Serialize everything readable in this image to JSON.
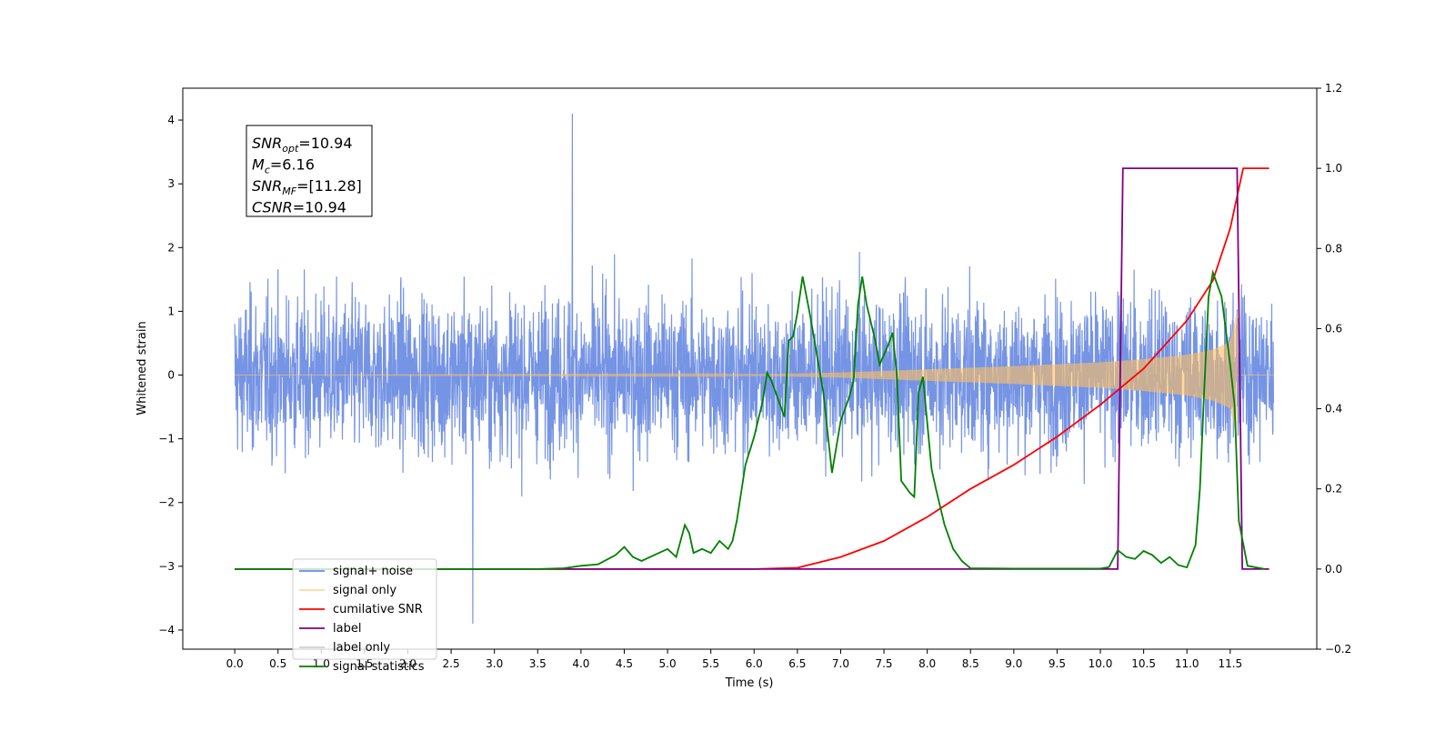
{
  "chart_data": {
    "type": "line",
    "xlabel": "Time (s)",
    "ylabel": "Whitened strain",
    "xlim": [
      -0.6,
      12.5
    ],
    "ylim": [
      -4.3,
      4.5
    ],
    "y2lim": [
      -0.2,
      1.2
    ],
    "x_ticks": [
      0.0,
      0.5,
      1.0,
      1.5,
      2.0,
      2.5,
      3.0,
      3.5,
      4.0,
      4.5,
      5.0,
      5.5,
      6.0,
      6.5,
      7.0,
      7.5,
      8.0,
      8.5,
      9.0,
      9.5,
      10.0,
      10.5,
      11.0,
      11.5
    ],
    "x_tick_labels": [
      "0.0",
      "0.5",
      "1.0",
      "1.5",
      "2.0",
      "2.5",
      "3.0",
      "3.5",
      "4.0",
      "4.5",
      "5.0",
      "5.5",
      "6.0",
      "6.5",
      "7.0",
      "7.5",
      "8.0",
      "8.5",
      "9.0",
      "9.5",
      "10.0",
      "10.5",
      "11.0",
      "11.5"
    ],
    "y_ticks": [
      -4,
      -3,
      -2,
      -1,
      0,
      1,
      2,
      3,
      4
    ],
    "y_tick_labels": [
      "−4",
      "−3",
      "−2",
      "−1",
      "0",
      "1",
      "2",
      "3",
      "4"
    ],
    "y2_ticks": [
      -0.2,
      0.0,
      0.2,
      0.4,
      0.6,
      0.8,
      1.0,
      1.2
    ],
    "y2_tick_labels": [
      "−0.2",
      "0.0",
      "0.2",
      "0.4",
      "0.6",
      "0.8",
      "1.0",
      "1.2"
    ],
    "grid": false,
    "legend_position": "lower-left",
    "annotation": {
      "lines": [
        {
          "sym": "SNR",
          "sub": "opt",
          "value": "=10.94"
        },
        {
          "sym": "M",
          "sub": "c",
          "value": "=6.16"
        },
        {
          "sym": "SNR",
          "sub": "MF",
          "value": "=[11.28]"
        },
        {
          "sym": "CSNR",
          "sub": "",
          "value": "=10.94"
        }
      ]
    },
    "series": [
      {
        "name": "signal+ noise",
        "color": "#6a8be2",
        "axis": "left",
        "kind": "noise",
        "t_range": [
          0.0,
          12.0
        ],
        "typical_range": [
          -2.4,
          2.4
        ],
        "peak_max": 4.1,
        "peak_min": -3.9
      },
      {
        "name": "signal only",
        "color": "#ffc060",
        "axis": "left",
        "kind": "chirp",
        "t_range": [
          0.0,
          11.58
        ],
        "envelope": {
          "t": [
            0.0,
            6.0,
            7.0,
            8.0,
            9.0,
            10.0,
            10.5,
            11.0,
            11.3,
            11.5,
            11.58
          ],
          "amp": [
            0.0,
            0.01,
            0.04,
            0.09,
            0.14,
            0.2,
            0.25,
            0.32,
            0.4,
            0.52,
            1.0
          ]
        }
      },
      {
        "name": "cumilative SNR",
        "color": "#ff0000",
        "axis": "right",
        "x": [
          0.0,
          5.5,
          6.0,
          6.5,
          7.0,
          7.5,
          8.0,
          8.5,
          9.0,
          9.5,
          10.0,
          10.5,
          11.0,
          11.3,
          11.5,
          11.6,
          11.65,
          11.95
        ],
        "y": [
          0.0,
          0.0,
          0.0,
          0.003,
          0.03,
          0.07,
          0.13,
          0.2,
          0.26,
          0.33,
          0.41,
          0.5,
          0.62,
          0.72,
          0.85,
          0.95,
          1.0,
          1.0
        ]
      },
      {
        "name": "label",
        "color": "#800080",
        "axis": "right",
        "x": [
          0.0,
          10.2,
          10.26,
          11.58,
          11.64,
          11.95
        ],
        "y": [
          0.0,
          0.0,
          1.0,
          1.0,
          0.0,
          0.0
        ]
      },
      {
        "name": "label only",
        "color": "#d0d0d0",
        "axis": "right",
        "x": [],
        "y": []
      },
      {
        "name": "signal statistics",
        "color": "#008000",
        "axis": "right",
        "x": [
          0.0,
          3.5,
          3.8,
          4.0,
          4.2,
          4.4,
          4.5,
          4.6,
          4.7,
          4.8,
          4.9,
          5.0,
          5.1,
          5.2,
          5.25,
          5.3,
          5.4,
          5.5,
          5.6,
          5.7,
          5.75,
          5.8,
          5.9,
          6.0,
          6.1,
          6.15,
          6.2,
          6.3,
          6.35,
          6.4,
          6.45,
          6.5,
          6.56,
          6.65,
          6.8,
          6.9,
          7.0,
          7.1,
          7.15,
          7.2,
          7.25,
          7.3,
          7.4,
          7.45,
          7.55,
          7.6,
          7.65,
          7.7,
          7.8,
          7.85,
          7.9,
          7.95,
          8.05,
          8.1,
          8.2,
          8.3,
          8.4,
          8.5,
          9.0,
          9.5,
          10.0,
          10.1,
          10.2,
          10.3,
          10.4,
          10.5,
          10.6,
          10.7,
          10.8,
          10.9,
          11.0,
          11.1,
          11.15,
          11.2,
          11.25,
          11.3,
          11.4,
          11.5,
          11.55,
          11.6,
          11.7,
          11.9
        ],
        "y": [
          0.0,
          0.0,
          0.002,
          0.008,
          0.012,
          0.035,
          0.055,
          0.03,
          0.02,
          0.03,
          0.04,
          0.05,
          0.03,
          0.11,
          0.09,
          0.04,
          0.05,
          0.04,
          0.07,
          0.05,
          0.07,
          0.12,
          0.26,
          0.33,
          0.42,
          0.49,
          0.47,
          0.41,
          0.38,
          0.57,
          0.58,
          0.64,
          0.73,
          0.63,
          0.44,
          0.24,
          0.37,
          0.43,
          0.47,
          0.66,
          0.73,
          0.66,
          0.57,
          0.51,
          0.56,
          0.59,
          0.48,
          0.22,
          0.19,
          0.18,
          0.44,
          0.48,
          0.25,
          0.2,
          0.11,
          0.05,
          0.02,
          0.002,
          0.001,
          0.001,
          0.001,
          0.005,
          0.047,
          0.03,
          0.025,
          0.045,
          0.035,
          0.015,
          0.03,
          0.01,
          0.004,
          0.06,
          0.2,
          0.45,
          0.68,
          0.74,
          0.68,
          0.51,
          0.41,
          0.12,
          0.008,
          0.0
        ]
      }
    ]
  }
}
